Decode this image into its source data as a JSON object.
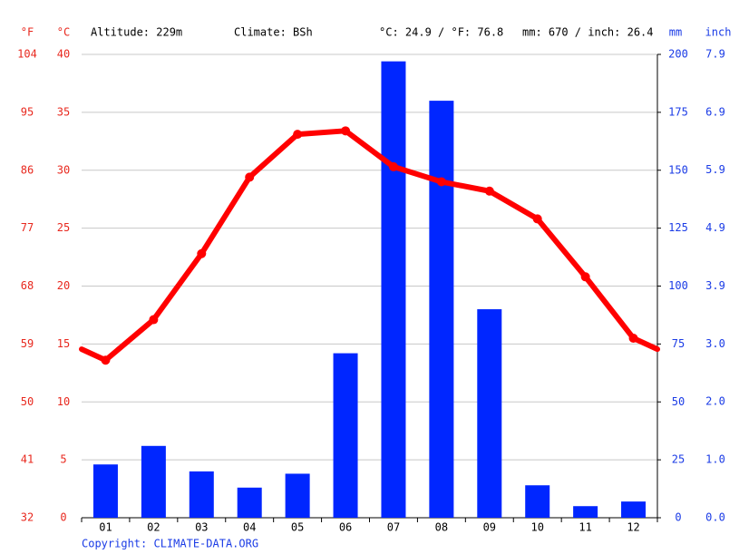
{
  "chart_data": {
    "type": "combo",
    "altitude": "Altitude: 229m",
    "climate": "Climate: BSh",
    "annual_temp": "°C: 24.9 / °F: 76.8",
    "annual_precip": "mm: 670 / inch: 26.4",
    "source": "Copyright: CLIMATE-DATA.ORG",
    "y_label": "°C",
    "y3_label": "°F",
    "y2_label": "mm",
    "y4_label": "inch",
    "categories": [
      "01",
      "02",
      "03",
      "04",
      "05",
      "06",
      "07",
      "08",
      "09",
      "10",
      "11",
      "12"
    ],
    "ylim": [
      0,
      40
    ],
    "yticks": [
      0,
      5,
      10,
      15,
      20,
      25,
      30,
      35,
      40
    ],
    "y3lim": [
      32,
      104
    ],
    "y3ticks": [
      32,
      41,
      50,
      59,
      68,
      77,
      86,
      95,
      104
    ],
    "y2lim": [
      0,
      200
    ],
    "y2ticks": [
      0,
      25,
      50,
      75,
      100,
      125,
      150,
      175,
      200
    ],
    "y4lim": [
      0,
      7.874
    ],
    "y4ticks": [
      {
        "value": 0,
        "label": "0.0"
      },
      {
        "value": 0.984,
        "label": "1.0"
      },
      {
        "value": 1.969,
        "label": "2.0"
      },
      {
        "value": 2.953,
        "label": "3.0"
      },
      {
        "value": 3.937,
        "label": "3.9"
      },
      {
        "value": 4.921,
        "label": "4.9"
      },
      {
        "value": 5.906,
        "label": "5.9"
      },
      {
        "value": 6.89,
        "label": "6.9"
      },
      {
        "value": 7.874,
        "label": "7.9"
      }
    ],
    "grid": true,
    "left_color": "#e8281e",
    "right_color": "#1a3be6",
    "series": [
      {
        "type": "bar",
        "axis": "y2",
        "color": "#0026ff",
        "values": [
          23,
          31,
          20,
          13,
          19,
          71,
          197,
          180,
          90,
          14,
          5,
          7
        ]
      },
      {
        "type": "line",
        "color": "#ff0000",
        "values": [
          13.6,
          17.1,
          22.8,
          29.4,
          33.1,
          33.4,
          30.3,
          29.0,
          28.2,
          25.8,
          20.8,
          15.5
        ]
      }
    ]
  }
}
